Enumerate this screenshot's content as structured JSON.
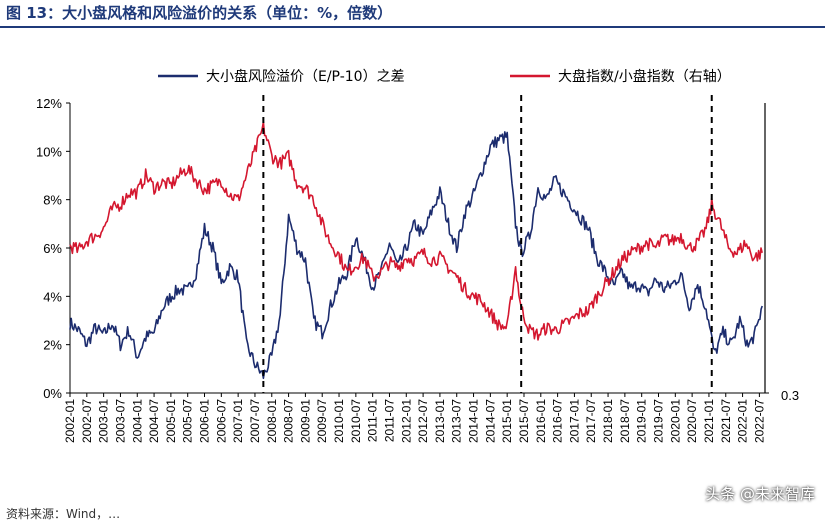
{
  "title": "图 13：大小盘风格和风险溢价的关系（单位：%，倍数）",
  "watermark": "头条 @未来智库",
  "footnote": "资料来源：Wind，…",
  "colors": {
    "navy": "#1c2c6e",
    "red": "#d4172f",
    "title": "#1f3a7a"
  },
  "chart_data": {
    "type": "line",
    "x_ticks": [
      "2002-01",
      "2002-07",
      "2003-01",
      "2003-07",
      "2004-01",
      "2004-07",
      "2005-01",
      "2005-07",
      "2006-01",
      "2006-07",
      "2007-01",
      "2007-07",
      "2008-01",
      "2008-07",
      "2009-01",
      "2009-07",
      "2010-01",
      "2010-07",
      "2011-01",
      "2011-07",
      "2012-01",
      "2012-07",
      "2013-01",
      "2013-07",
      "2014-01",
      "2014-07",
      "2015-01",
      "2015-07",
      "2016-01",
      "2016-07",
      "2017-01",
      "2017-07",
      "2018-01",
      "2018-07",
      "2019-01",
      "2019-07",
      "2020-01",
      "2020-07",
      "2021-01",
      "2021-07",
      "2022-01",
      "2022-07"
    ],
    "left_axis": {
      "ticks": [
        "0%",
        "2%",
        "4%",
        "6%",
        "8%",
        "10%",
        "12%"
      ],
      "ylim": [
        0,
        12
      ]
    },
    "right_axis": {
      "visible_tick": "0.3",
      "ylim": [
        0.3,
        1.5
      ]
    },
    "legend_placement": "top",
    "vlines": [
      "2007-10",
      "2015-06",
      "2021-02"
    ],
    "series": [
      {
        "name": "大小盘风险溢价（E/P-10）之差",
        "axis": "left",
        "color": "#1c2c6e",
        "points": [
          [
            "2002-01",
            2.9
          ],
          [
            "2002-04",
            2.6
          ],
          [
            "2002-07",
            2.0
          ],
          [
            "2002-10",
            2.7
          ],
          [
            "2003-01",
            2.4
          ],
          [
            "2003-04",
            2.9
          ],
          [
            "2003-07",
            2.0
          ],
          [
            "2003-10",
            2.6
          ],
          [
            "2004-01",
            1.5
          ],
          [
            "2004-04",
            2.3
          ],
          [
            "2004-07",
            2.5
          ],
          [
            "2004-10",
            3.5
          ],
          [
            "2005-01",
            4.0
          ],
          [
            "2005-04",
            4.3
          ],
          [
            "2005-07",
            4.2
          ],
          [
            "2005-10",
            5.0
          ],
          [
            "2006-01",
            6.8
          ],
          [
            "2006-04",
            6.0
          ],
          [
            "2006-07",
            4.5
          ],
          [
            "2006-10",
            5.2
          ],
          [
            "2007-01",
            4.8
          ],
          [
            "2007-04",
            2.0
          ],
          [
            "2007-07",
            1.2
          ],
          [
            "2007-10",
            0.7
          ],
          [
            "2008-01",
            1.5
          ],
          [
            "2008-04",
            3.2
          ],
          [
            "2008-07",
            7.3
          ],
          [
            "2008-10",
            6.0
          ],
          [
            "2009-01",
            5.5
          ],
          [
            "2009-04",
            3.0
          ],
          [
            "2009-07",
            2.5
          ],
          [
            "2009-10",
            3.6
          ],
          [
            "2010-01",
            4.5
          ],
          [
            "2010-04",
            5.0
          ],
          [
            "2010-07",
            6.5
          ],
          [
            "2010-10",
            5.5
          ],
          [
            "2011-01",
            4.4
          ],
          [
            "2011-04",
            5.0
          ],
          [
            "2011-07",
            6.2
          ],
          [
            "2011-10",
            5.2
          ],
          [
            "2012-01",
            6.0
          ],
          [
            "2012-04",
            7.0
          ],
          [
            "2012-07",
            6.5
          ],
          [
            "2012-10",
            7.5
          ],
          [
            "2013-01",
            8.3
          ],
          [
            "2013-04",
            7.0
          ],
          [
            "2013-07",
            6.0
          ],
          [
            "2013-10",
            7.5
          ],
          [
            "2014-01",
            8.2
          ],
          [
            "2014-04",
            9.2
          ],
          [
            "2014-07",
            10.2
          ],
          [
            "2014-10",
            10.5
          ],
          [
            "2015-01",
            10.6
          ],
          [
            "2015-04",
            7.0
          ],
          [
            "2015-06",
            5.8
          ],
          [
            "2015-09",
            6.5
          ],
          [
            "2015-12",
            8.5
          ],
          [
            "2016-03",
            8.0
          ],
          [
            "2016-06",
            8.8
          ],
          [
            "2016-09",
            8.3
          ],
          [
            "2016-12",
            7.8
          ],
          [
            "2017-03",
            7.3
          ],
          [
            "2017-06",
            6.8
          ],
          [
            "2017-09",
            5.6
          ],
          [
            "2017-12",
            5.0
          ],
          [
            "2018-03",
            4.4
          ],
          [
            "2018-06",
            5.0
          ],
          [
            "2018-09",
            4.3
          ],
          [
            "2018-12",
            4.5
          ],
          [
            "2019-03",
            4.1
          ],
          [
            "2019-06",
            4.7
          ],
          [
            "2019-09",
            4.3
          ],
          [
            "2019-12",
            4.5
          ],
          [
            "2020-03",
            4.9
          ],
          [
            "2020-06",
            3.6
          ],
          [
            "2020-09",
            4.5
          ],
          [
            "2020-12",
            3.5
          ],
          [
            "2021-03",
            1.6
          ],
          [
            "2021-06",
            2.5
          ],
          [
            "2021-09",
            2.0
          ],
          [
            "2021-12",
            3.0
          ],
          [
            "2022-03",
            1.9
          ],
          [
            "2022-06",
            2.6
          ],
          [
            "2022-08",
            3.6
          ]
        ]
      },
      {
        "name": "大盘指数/小盘指数（右轴）",
        "axis": "left",
        "color": "#d4172f",
        "points": [
          [
            "2002-01",
            6.1
          ],
          [
            "2002-04",
            5.9
          ],
          [
            "2002-07",
            6.3
          ],
          [
            "2002-10",
            6.5
          ],
          [
            "2003-01",
            6.8
          ],
          [
            "2003-04",
            7.6
          ],
          [
            "2003-07",
            7.8
          ],
          [
            "2003-10",
            8.3
          ],
          [
            "2004-01",
            8.3
          ],
          [
            "2004-04",
            9.0
          ],
          [
            "2004-07",
            8.5
          ],
          [
            "2004-10",
            8.7
          ],
          [
            "2005-01",
            8.6
          ],
          [
            "2005-04",
            9.0
          ],
          [
            "2005-07",
            9.3
          ],
          [
            "2005-10",
            8.8
          ],
          [
            "2006-01",
            8.4
          ],
          [
            "2006-04",
            8.6
          ],
          [
            "2006-07",
            8.8
          ],
          [
            "2006-10",
            8.2
          ],
          [
            "2007-01",
            8.0
          ],
          [
            "2007-04",
            9.0
          ],
          [
            "2007-07",
            10.0
          ],
          [
            "2007-10",
            11.0
          ],
          [
            "2008-01",
            9.8
          ],
          [
            "2008-04",
            9.5
          ],
          [
            "2008-07",
            9.8
          ],
          [
            "2008-10",
            8.7
          ],
          [
            "2009-01",
            8.5
          ],
          [
            "2009-04",
            8.0
          ],
          [
            "2009-07",
            7.0
          ],
          [
            "2009-10",
            6.2
          ],
          [
            "2010-01",
            5.7
          ],
          [
            "2010-04",
            5.0
          ],
          [
            "2010-07",
            5.3
          ],
          [
            "2010-10",
            5.6
          ],
          [
            "2011-01",
            4.8
          ],
          [
            "2011-04",
            5.0
          ],
          [
            "2011-07",
            5.4
          ],
          [
            "2011-10",
            5.2
          ],
          [
            "2012-01",
            5.6
          ],
          [
            "2012-04",
            5.5
          ],
          [
            "2012-07",
            5.8
          ],
          [
            "2012-10",
            5.5
          ],
          [
            "2013-01",
            5.6
          ],
          [
            "2013-04",
            5.2
          ],
          [
            "2013-07",
            4.8
          ],
          [
            "2013-10",
            4.3
          ],
          [
            "2014-01",
            4.0
          ],
          [
            "2014-04",
            3.8
          ],
          [
            "2014-07",
            3.3
          ],
          [
            "2014-10",
            2.8
          ],
          [
            "2015-01",
            2.7
          ],
          [
            "2015-04",
            5.2
          ],
          [
            "2015-06",
            3.5
          ],
          [
            "2015-09",
            2.6
          ],
          [
            "2015-12",
            2.4
          ],
          [
            "2016-03",
            2.7
          ],
          [
            "2016-06",
            2.6
          ],
          [
            "2016-09",
            2.8
          ],
          [
            "2016-12",
            3.0
          ],
          [
            "2017-03",
            3.3
          ],
          [
            "2017-06",
            3.4
          ],
          [
            "2017-09",
            4.0
          ],
          [
            "2017-12",
            4.5
          ],
          [
            "2018-03",
            5.0
          ],
          [
            "2018-06",
            5.5
          ],
          [
            "2018-09",
            5.8
          ],
          [
            "2018-12",
            6.0
          ],
          [
            "2019-03",
            6.2
          ],
          [
            "2019-06",
            6.0
          ],
          [
            "2019-09",
            6.4
          ],
          [
            "2019-12",
            6.3
          ],
          [
            "2020-03",
            6.5
          ],
          [
            "2020-06",
            6.0
          ],
          [
            "2020-09",
            6.2
          ],
          [
            "2020-12",
            6.8
          ],
          [
            "2021-02",
            7.8
          ],
          [
            "2021-05",
            7.0
          ],
          [
            "2021-08",
            6.0
          ],
          [
            "2021-11",
            5.8
          ],
          [
            "2022-02",
            6.2
          ],
          [
            "2022-05",
            5.6
          ],
          [
            "2022-08",
            5.8
          ]
        ]
      }
    ]
  }
}
